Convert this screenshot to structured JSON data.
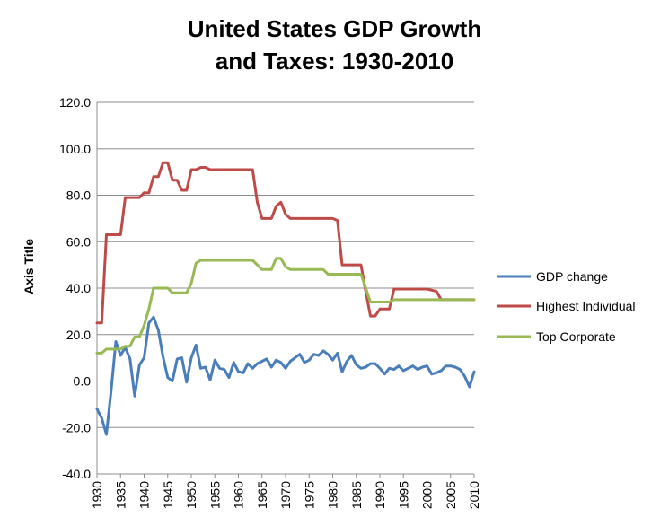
{
  "chart_data": {
    "type": "line",
    "title": [
      "United States GDP Growth",
      "and Taxes:  1930-2010"
    ],
    "xlabel": "",
    "ylabel": "Axis Title",
    "ylim": [
      -40,
      120
    ],
    "yticks": [
      120,
      100,
      80,
      60,
      40,
      20,
      0,
      -20,
      -40
    ],
    "ytick_labels": [
      "120.0",
      "100.0",
      "80.0",
      "60.0",
      "40.0",
      "20.0",
      "0.0",
      "-20.0",
      "-40.0"
    ],
    "xlim": [
      1930,
      2010
    ],
    "xticks": [
      1930,
      1935,
      1940,
      1945,
      1950,
      1955,
      1960,
      1965,
      1970,
      1975,
      1980,
      1985,
      1990,
      1995,
      2000,
      2005,
      2010
    ],
    "xtick_labels": [
      "1930",
      "1935",
      "1940",
      "1945",
      "1950",
      "1955",
      "1960",
      "1965",
      "1970",
      "1975",
      "1980",
      "1985",
      "1990",
      "1995",
      "2000",
      "2005",
      "2010"
    ],
    "grid": "horizontal",
    "legend_position": "right",
    "series": [
      {
        "name": "GDP change",
        "color": "#4a7ebb",
        "x": [
          1930,
          1931,
          1932,
          1933,
          1934,
          1935,
          1936,
          1937,
          1938,
          1939,
          1940,
          1941,
          1942,
          1943,
          1944,
          1945,
          1946,
          1947,
          1948,
          1949,
          1950,
          1951,
          1952,
          1953,
          1954,
          1955,
          1956,
          1957,
          1958,
          1959,
          1960,
          1961,
          1962,
          1963,
          1964,
          1965,
          1966,
          1967,
          1968,
          1969,
          1970,
          1971,
          1972,
          1973,
          1974,
          1975,
          1976,
          1977,
          1978,
          1979,
          1980,
          1981,
          1982,
          1983,
          1984,
          1985,
          1986,
          1987,
          1988,
          1989,
          1990,
          1991,
          1992,
          1993,
          1994,
          1995,
          1996,
          1997,
          1998,
          1999,
          2000,
          2001,
          2002,
          2003,
          2004,
          2005,
          2006,
          2007,
          2008,
          2009,
          2010
        ],
        "values": [
          -12.0,
          -16.0,
          -23.0,
          -4.0,
          17.0,
          11.0,
          14.5,
          9.5,
          -6.5,
          7.0,
          10.0,
          25.0,
          27.5,
          22.0,
          10.5,
          1.5,
          0.0,
          9.5,
          10.0,
          -0.5,
          10.0,
          15.5,
          5.5,
          6.0,
          0.5,
          9.0,
          5.5,
          5.0,
          1.5,
          8.0,
          4.0,
          3.5,
          7.5,
          5.5,
          7.5,
          8.5,
          9.5,
          6.0,
          9.0,
          8.0,
          5.5,
          8.5,
          10.0,
          11.5,
          8.0,
          9.0,
          11.5,
          11.0,
          13.0,
          11.5,
          9.0,
          12.0,
          4.0,
          8.5,
          11.0,
          7.0,
          5.5,
          6.0,
          7.5,
          7.5,
          5.5,
          3.0,
          5.5,
          5.0,
          6.5,
          4.5,
          5.5,
          6.5,
          5.0,
          6.0,
          6.5,
          3.0,
          3.5,
          4.5,
          6.5,
          6.5,
          6.0,
          5.0,
          2.0,
          -2.5,
          4.0
        ]
      },
      {
        "name": "Highest Individual",
        "color": "#be4b48",
        "x": [
          1930,
          1931,
          1932,
          1933,
          1934,
          1935,
          1936,
          1937,
          1938,
          1939,
          1940,
          1941,
          1942,
          1943,
          1944,
          1945,
          1946,
          1947,
          1948,
          1949,
          1950,
          1951,
          1952,
          1953,
          1954,
          1955,
          1956,
          1957,
          1958,
          1959,
          1960,
          1961,
          1962,
          1963,
          1964,
          1965,
          1966,
          1967,
          1968,
          1969,
          1970,
          1971,
          1972,
          1973,
          1974,
          1975,
          1976,
          1977,
          1978,
          1979,
          1980,
          1981,
          1982,
          1983,
          1984,
          1985,
          1986,
          1987,
          1988,
          1989,
          1990,
          1991,
          1992,
          1993,
          1994,
          1995,
          1996,
          1997,
          1998,
          1999,
          2000,
          2001,
          2002,
          2003,
          2004,
          2005,
          2006,
          2007,
          2008,
          2009,
          2010
        ],
        "values": [
          25,
          25,
          63,
          63,
          63,
          63,
          79,
          79,
          79,
          79,
          81.1,
          81,
          88,
          88,
          94,
          94,
          86.45,
          86.45,
          82.13,
          82.13,
          91,
          91,
          92,
          92,
          91,
          91,
          91,
          91,
          91,
          91,
          91,
          91,
          91,
          91,
          77,
          70,
          70,
          70,
          75.25,
          77,
          71.75,
          70,
          70,
          70,
          70,
          70,
          70,
          70,
          70,
          70,
          70,
          69.13,
          50,
          50,
          50,
          50,
          50,
          38.5,
          28,
          28,
          31,
          31,
          31,
          39.6,
          39.6,
          39.6,
          39.6,
          39.6,
          39.6,
          39.6,
          39.6,
          39.1,
          38.6,
          35,
          35,
          35,
          35,
          35,
          35,
          35,
          35
        ]
      },
      {
        "name": "Top Corporate",
        "color": "#98b954",
        "x": [
          1930,
          1931,
          1932,
          1933,
          1934,
          1935,
          1936,
          1937,
          1938,
          1939,
          1940,
          1941,
          1942,
          1943,
          1944,
          1945,
          1946,
          1947,
          1948,
          1949,
          1950,
          1951,
          1952,
          1953,
          1954,
          1955,
          1956,
          1957,
          1958,
          1959,
          1960,
          1961,
          1962,
          1963,
          1964,
          1965,
          1966,
          1967,
          1968,
          1969,
          1970,
          1971,
          1972,
          1973,
          1974,
          1975,
          1976,
          1977,
          1978,
          1979,
          1980,
          1981,
          1982,
          1983,
          1984,
          1985,
          1986,
          1987,
          1988,
          1989,
          1990,
          1991,
          1992,
          1993,
          1994,
          1995,
          1996,
          1997,
          1998,
          1999,
          2000,
          2001,
          2002,
          2003,
          2004,
          2005,
          2006,
          2007,
          2008,
          2009,
          2010
        ],
        "values": [
          12,
          12,
          13.75,
          13.75,
          13.75,
          13.75,
          15,
          15,
          19,
          19,
          24,
          31,
          40,
          40,
          40,
          40,
          38,
          38,
          38,
          38,
          42,
          50.75,
          52,
          52,
          52,
          52,
          52,
          52,
          52,
          52,
          52,
          52,
          52,
          52,
          50,
          48,
          48,
          48,
          52.8,
          52.8,
          49.2,
          48,
          48,
          48,
          48,
          48,
          48,
          48,
          48,
          46,
          46,
          46,
          46,
          46,
          46,
          46,
          46,
          40,
          34,
          34,
          34,
          34,
          34,
          35,
          35,
          35,
          35,
          35,
          35,
          35,
          35,
          35,
          35,
          35,
          35,
          35,
          35,
          35,
          35,
          35,
          35
        ]
      }
    ]
  }
}
